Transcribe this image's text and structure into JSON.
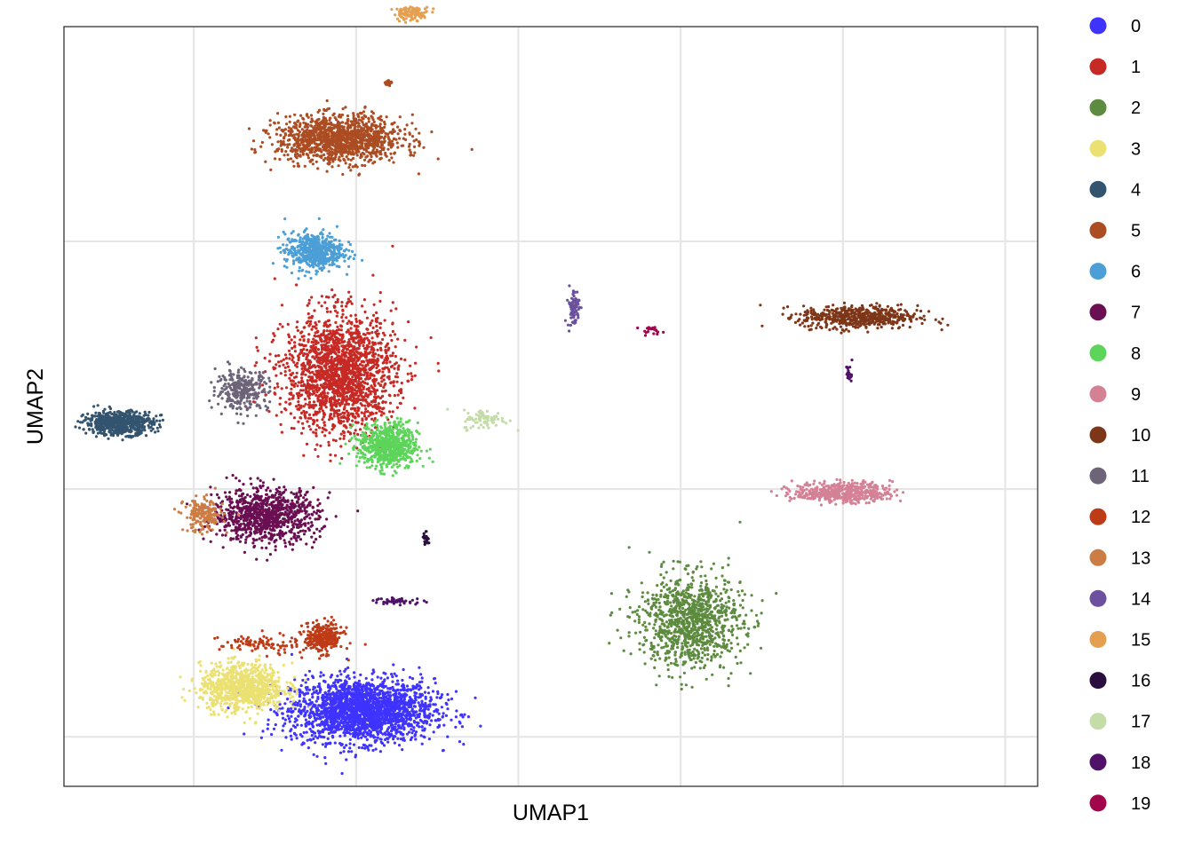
{
  "chart_data": {
    "type": "scatter",
    "title": "",
    "xlabel": "UMAP1",
    "ylabel": "UMAP2",
    "xlim": [
      -8,
      22
    ],
    "ylim": [
      -13,
      10
    ],
    "grid": true,
    "x_gridlines": [
      -4,
      1,
      6,
      11,
      16,
      21
    ],
    "y_gridlines": [
      -11.5,
      -4,
      3.5
    ],
    "tick_labels_shown": false,
    "legend_position": "right",
    "series": [
      {
        "name": "0",
        "color": "#3F33FF"
      },
      {
        "name": "1",
        "color": "#C72A25"
      },
      {
        "name": "2",
        "color": "#5D8B3F"
      },
      {
        "name": "3",
        "color": "#EBE173"
      },
      {
        "name": "4",
        "color": "#33546F"
      },
      {
        "name": "5",
        "color": "#AB4C23"
      },
      {
        "name": "6",
        "color": "#4B9FD6"
      },
      {
        "name": "7",
        "color": "#6B0F53"
      },
      {
        "name": "8",
        "color": "#5DD45A"
      },
      {
        "name": "9",
        "color": "#D48196"
      },
      {
        "name": "10",
        "color": "#7E3618"
      },
      {
        "name": "11",
        "color": "#6D6479"
      },
      {
        "name": "12",
        "color": "#BE3B17"
      },
      {
        "name": "13",
        "color": "#CC7C45"
      },
      {
        "name": "14",
        "color": "#6B519E"
      },
      {
        "name": "15",
        "color": "#E49F50"
      },
      {
        "name": "16",
        "color": "#2A0F3E"
      },
      {
        "name": "17",
        "color": "#C4DCA8"
      },
      {
        "name": "18",
        "color": "#501268"
      },
      {
        "name": "19",
        "color": "#A1054B"
      }
    ],
    "clusters": [
      {
        "label": "0",
        "center": [
          1.2,
          -10.7
        ],
        "spread": [
          2.2,
          0.95
        ],
        "n": 2200
      },
      {
        "label": "3",
        "center": [
          -2.5,
          -10.0
        ],
        "spread": [
          1.3,
          0.7
        ],
        "n": 900
      },
      {
        "label": "12",
        "center": [
          0.0,
          -8.5
        ],
        "spread": [
          0.6,
          0.45
        ],
        "n": 300
      },
      {
        "label": "12",
        "center": [
          -2.0,
          -8.7
        ],
        "spread": [
          1.2,
          0.3
        ],
        "n": 90
      },
      {
        "label": "4",
        "center": [
          -6.3,
          -2.0
        ],
        "spread": [
          1.05,
          0.35
        ],
        "n": 650
      },
      {
        "label": "11",
        "center": [
          -2.5,
          -1.0
        ],
        "spread": [
          0.8,
          0.6
        ],
        "n": 300
      },
      {
        "label": "1",
        "center": [
          0.5,
          -0.5
        ],
        "spread": [
          1.7,
          1.8
        ],
        "n": 1900
      },
      {
        "label": "8",
        "center": [
          2.0,
          -2.7
        ],
        "spread": [
          0.9,
          0.7
        ],
        "n": 650
      },
      {
        "label": "17",
        "center": [
          5.0,
          -1.9
        ],
        "spread": [
          0.7,
          0.3
        ],
        "n": 80
      },
      {
        "label": "6",
        "center": [
          -0.3,
          3.2
        ],
        "spread": [
          0.9,
          0.55
        ],
        "n": 550
      },
      {
        "label": "5",
        "center": [
          0.5,
          6.6
        ],
        "spread": [
          1.9,
          0.7
        ],
        "n": 1300
      },
      {
        "label": "15",
        "center": [
          2.7,
          10.4
        ],
        "spread": [
          0.55,
          0.2
        ],
        "n": 100
      },
      {
        "label": "5",
        "center": [
          2.0,
          8.3
        ],
        "spread": [
          0.1,
          0.07
        ],
        "n": 30
      },
      {
        "label": "7",
        "center": [
          -1.8,
          -4.8
        ],
        "spread": [
          1.6,
          0.8
        ],
        "n": 950
      },
      {
        "label": "13",
        "center": [
          -3.7,
          -4.8
        ],
        "spread": [
          0.6,
          0.5
        ],
        "n": 200
      },
      {
        "label": "16",
        "center": [
          3.15,
          -5.5
        ],
        "spread": [
          0.1,
          0.18
        ],
        "n": 20
      },
      {
        "label": "18",
        "center": [
          2.3,
          -7.4
        ],
        "spread": [
          0.8,
          0.1
        ],
        "n": 45
      },
      {
        "label": "2",
        "center": [
          11.3,
          -8.0
        ],
        "spread": [
          1.6,
          1.4
        ],
        "n": 1050
      },
      {
        "label": "9",
        "center": [
          16.0,
          -4.1
        ],
        "spread": [
          1.5,
          0.3
        ],
        "n": 500
      },
      {
        "label": "10",
        "center": [
          16.5,
          1.2
        ],
        "spread": [
          1.8,
          0.35
        ],
        "n": 550
      },
      {
        "label": "14",
        "center": [
          7.7,
          1.5
        ],
        "spread": [
          0.18,
          0.6
        ],
        "n": 80
      },
      {
        "label": "19",
        "center": [
          10.1,
          0.8
        ],
        "spread": [
          0.35,
          0.1
        ],
        "n": 20
      },
      {
        "label": "18",
        "center": [
          16.2,
          -0.5
        ],
        "spread": [
          0.1,
          0.3
        ],
        "n": 20
      }
    ]
  }
}
